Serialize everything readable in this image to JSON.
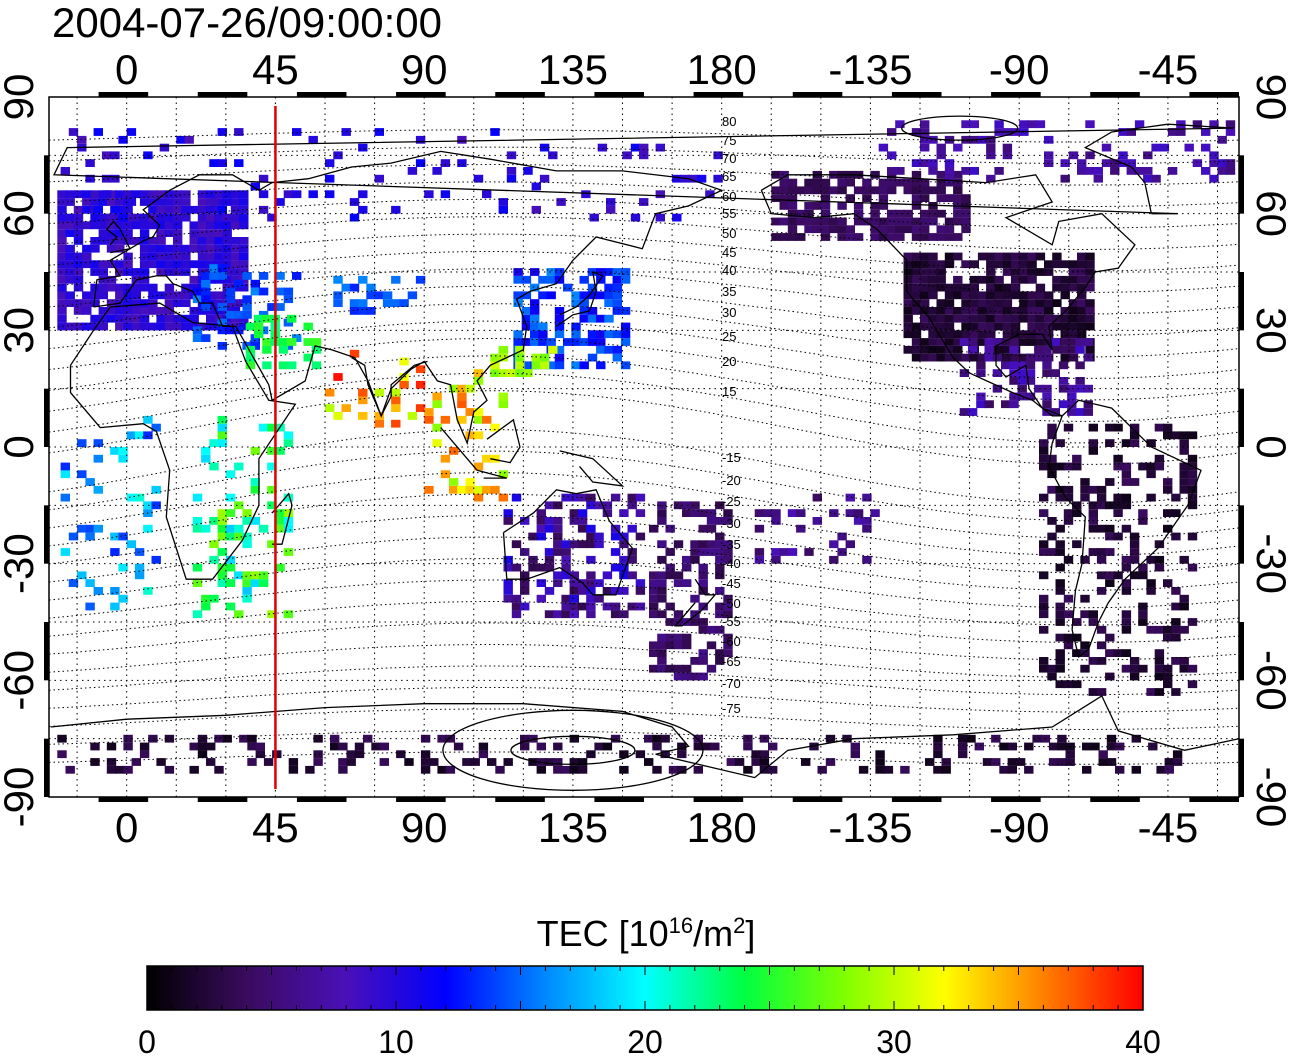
{
  "title": "2004-07-26/09:00:00",
  "map": {
    "projection": "equirectangular",
    "lon_min": -23.5,
    "lon_max": 336.5,
    "lat_min": -90,
    "lat_max": 90,
    "x_ticks_lon": [
      0,
      45,
      90,
      135,
      180,
      225,
      270,
      315
    ],
    "x_tick_labels": [
      "0",
      "45",
      "90",
      "135",
      "180",
      "-135",
      "-90",
      "-45"
    ],
    "y_ticks_lat": [
      90,
      60,
      30,
      0,
      -30,
      -60,
      -90
    ],
    "y_tick_labels": [
      "90",
      "60",
      "30",
      "0",
      "-30",
      "-60",
      "-90"
    ],
    "grid": "dotted every 15 degrees",
    "marker_line": {
      "lon": 45,
      "color": "#e00000"
    },
    "contour_labels_north": [
      "80",
      "75",
      "70",
      "65",
      "60",
      "55",
      "50",
      "45",
      "40",
      "35",
      "30",
      "25",
      "20",
      "15"
    ],
    "contour_labels_south": [
      "-15",
      "-20",
      "-25",
      "-30",
      "-35",
      "-40",
      "-45",
      "-50",
      "-55",
      "-60",
      "-65",
      "-70",
      "-75"
    ]
  },
  "colorbar": {
    "label_text": "TEC  [10",
    "label_exp": "16",
    "label_mid": "/m",
    "label_exp2": "2",
    "label_end": "]",
    "min": 0,
    "max": 40,
    "tick_values": [
      0,
      10,
      20,
      30,
      40
    ],
    "tick_labels": [
      "0",
      "10",
      "20",
      "30",
      "40"
    ],
    "colors": [
      "#000000",
      "#3a0b5e",
      "#4a10b8",
      "#0000ff",
      "#0088ff",
      "#00ffff",
      "#00ff40",
      "#7fff00",
      "#ffff00",
      "#ff8000",
      "#ff0000"
    ]
  }
}
